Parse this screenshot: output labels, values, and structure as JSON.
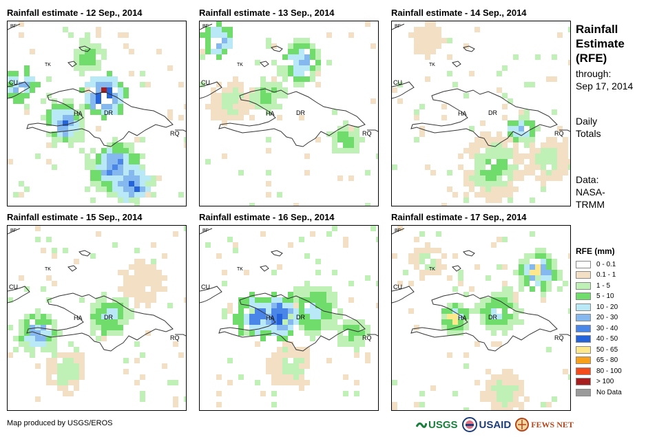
{
  "panels": [
    {
      "title": "Rainfall estimate - 12 Sep., 2014"
    },
    {
      "title": "Rainfall estimate - 13 Sep., 2014"
    },
    {
      "title": "Rainfall estimate - 14 Sep., 2014"
    },
    {
      "title": "Rainfall estimate - 15 Sep., 2014"
    },
    {
      "title": "Rainfall estimate - 16 Sep., 2014"
    },
    {
      "title": "Rainfall estimate - 17 Sep., 2014"
    }
  ],
  "map_labels": {
    "bf": "BF",
    "tk": "TK",
    "cu": "CU",
    "ha": "HA",
    "dr": "DR",
    "rq": "RQ"
  },
  "side": {
    "title_line1": "Rainfall",
    "title_line2": "Estimate",
    "title_line3": "(RFE)",
    "through_line1": "through:",
    "through_line2": "Sep 17, 2014",
    "daily_line1": "Daily",
    "daily_line2": "Totals",
    "data_line1": "Data:",
    "data_line2": "NASA-",
    "data_line3": "TRMM"
  },
  "legend": {
    "title": "RFE (mm)",
    "items": [
      {
        "label": "0 - 0.1",
        "color": "#ffffff"
      },
      {
        "label": "0.1 - 1",
        "color": "#f2dfc4"
      },
      {
        "label": "1 - 5",
        "color": "#bff0b5"
      },
      {
        "label": "5 - 10",
        "color": "#6fdc6b"
      },
      {
        "label": "10 - 20",
        "color": "#b9e8f7"
      },
      {
        "label": "20 - 30",
        "color": "#86b8f0"
      },
      {
        "label": "30 - 40",
        "color": "#4a86e8"
      },
      {
        "label": "40 - 50",
        "color": "#2463d9"
      },
      {
        "label": "50 - 65",
        "color": "#fde98c"
      },
      {
        "label": "65 - 80",
        "color": "#f9a01b"
      },
      {
        "label": "80 - 100",
        "color": "#f44b1b"
      },
      {
        "label": "> 100",
        "color": "#a81e1e"
      },
      {
        "label": "No Data",
        "color": "#9a9a9a"
      }
    ]
  },
  "footer": {
    "credit": "Map produced by USGS/EROS",
    "logo_usgs": "USGS",
    "logo_usaid": "USAID",
    "logo_fews": "FEWS NET"
  }
}
